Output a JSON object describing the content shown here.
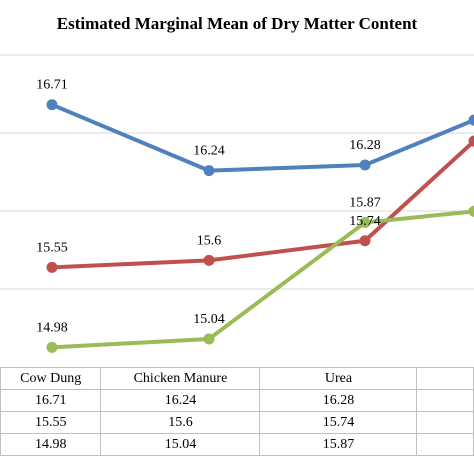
{
  "chart_data": {
    "type": "line",
    "title": "Estimated Marginal Mean of Dry Matter Content",
    "categories": [
      "Cow Dung",
      "Chicken Manure",
      "Urea",
      ""
    ],
    "series": [
      {
        "values": [
          16.71,
          16.24,
          16.28,
          16.6
        ],
        "color": "#4f81bd"
      },
      {
        "values": [
          15.55,
          15.6,
          15.74,
          16.45
        ],
        "color": "#c0504d"
      },
      {
        "values": [
          14.98,
          15.04,
          15.87,
          15.95
        ],
        "color": "#9bbb59"
      }
    ],
    "data_labels": [
      [
        "16.71",
        "16.24",
        "16.28",
        ""
      ],
      [
        "15.55",
        "15.6",
        "15.74",
        ""
      ],
      [
        "14.98",
        "15.04",
        "15.87",
        ""
      ]
    ],
    "ylim": [
      14.84,
      17.1
    ],
    "grid": true,
    "legend": "none",
    "table": {
      "header": [
        "Cow Dung",
        "Chicken Manure",
        "Urea",
        ""
      ],
      "rows": [
        [
          "16.71",
          "16.24",
          "16.28",
          ""
        ],
        [
          "15.55",
          "15.6",
          "15.74",
          ""
        ],
        [
          "14.98",
          "15.04",
          "15.87",
          ""
        ]
      ]
    }
  }
}
